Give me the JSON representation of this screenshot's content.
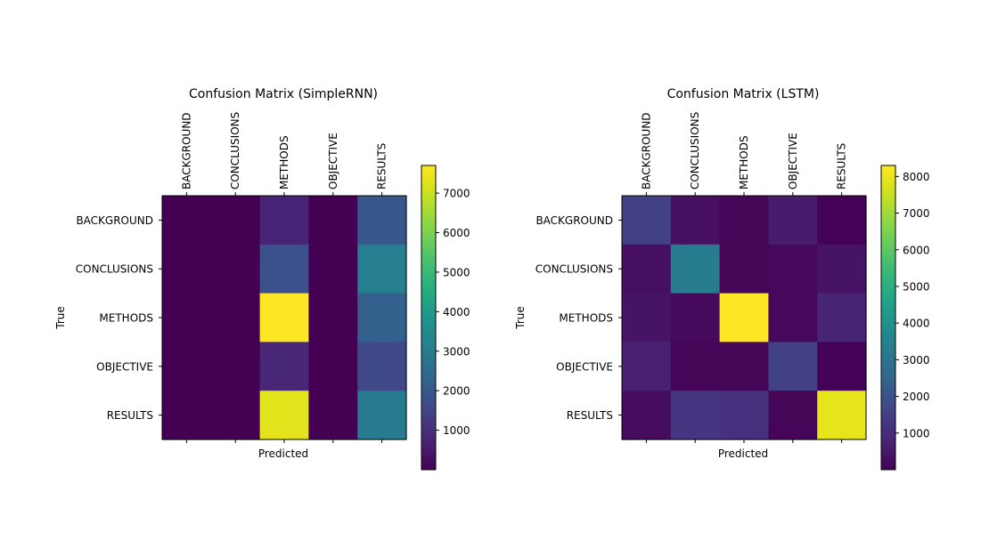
{
  "chart_data": [
    {
      "type": "heatmap",
      "title": "Confusion Matrix (SimpleRNN)",
      "xlabel": "Predicted",
      "ylabel": "True",
      "x_categories": [
        "BACKGROUND",
        "CONCLUSIONS",
        "METHODS",
        "OBJECTIVE",
        "RESULTS"
      ],
      "y_categories": [
        "BACKGROUND",
        "CONCLUSIONS",
        "METHODS",
        "OBJECTIVE",
        "RESULTS"
      ],
      "values": [
        [
          0,
          0,
          700,
          0,
          2000
        ],
        [
          0,
          0,
          1800,
          0,
          3100
        ],
        [
          0,
          0,
          7700,
          0,
          2200
        ],
        [
          0,
          0,
          800,
          0,
          1600
        ],
        [
          0,
          0,
          7300,
          0,
          3000
        ]
      ],
      "colormap": "viridis",
      "vmin": 0,
      "vmax": 7700,
      "colorbar_ticks": [
        1000,
        2000,
        3000,
        4000,
        5000,
        6000,
        7000
      ]
    },
    {
      "type": "heatmap",
      "title": "Confusion Matrix (LSTM)",
      "xlabel": "Predicted",
      "ylabel": "True",
      "x_categories": [
        "BACKGROUND",
        "CONCLUSIONS",
        "METHODS",
        "OBJECTIVE",
        "RESULTS"
      ],
      "y_categories": [
        "BACKGROUND",
        "CONCLUSIONS",
        "METHODS",
        "OBJECTIVE",
        "RESULTS"
      ],
      "values": [
        [
          1500,
          300,
          100,
          600,
          50
        ],
        [
          300,
          3300,
          100,
          150,
          400
        ],
        [
          400,
          200,
          8300,
          150,
          800
        ],
        [
          700,
          100,
          100,
          1500,
          50
        ],
        [
          250,
          1200,
          1100,
          100,
          7900
        ]
      ],
      "colormap": "viridis",
      "vmin": 0,
      "vmax": 8300,
      "colorbar_ticks": [
        1000,
        2000,
        3000,
        4000,
        5000,
        6000,
        7000,
        8000
      ]
    }
  ]
}
